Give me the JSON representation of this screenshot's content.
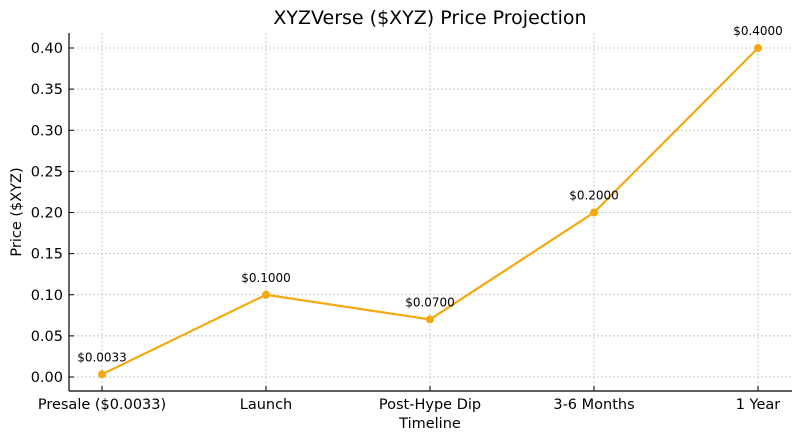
{
  "chart_data": {
    "type": "line",
    "title": "XYZVerse ($XYZ) Price Projection",
    "xlabel": "Timeline",
    "ylabel": "Price ($XYZ)",
    "categories": [
      "Presale ($0.0033)",
      "Launch",
      "Post-Hype Dip",
      "3-6 Months",
      "1 Year"
    ],
    "series": [
      {
        "name": "Price",
        "values": [
          0.0033,
          0.1,
          0.07,
          0.2,
          0.4
        ],
        "color": "#f5a90f"
      }
    ],
    "annotations": [
      "$0.0033",
      "$0.1000",
      "$0.0700",
      "$0.2000",
      "$0.4000"
    ],
    "yticks": [
      "0.00",
      "0.05",
      "0.10",
      "0.15",
      "0.20",
      "0.25",
      "0.30",
      "0.35",
      "0.40"
    ],
    "ylim": [
      -0.017,
      0.42
    ],
    "grid": true,
    "legend": null
  }
}
